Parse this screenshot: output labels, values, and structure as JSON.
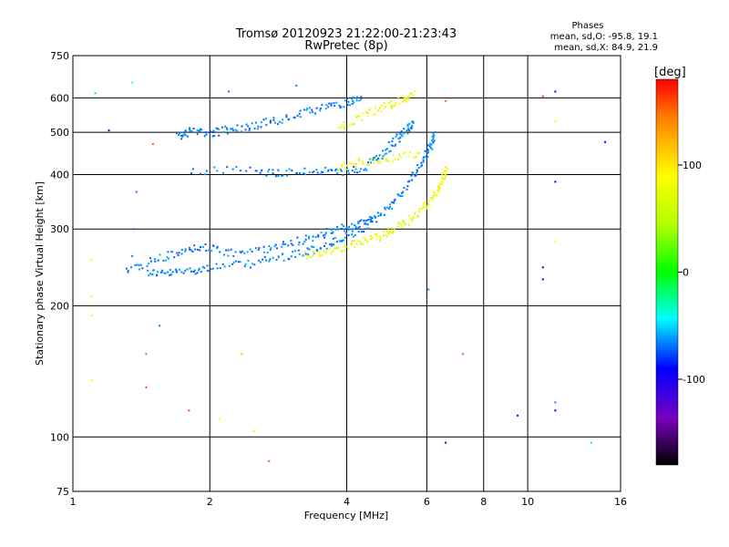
{
  "chart_data": {
    "type": "scatter",
    "title": "Tromsø 20120923 21:22:00-21:23:43",
    "subtitle": "RwPretec (8p)",
    "xlabel": "Frequency [MHz]",
    "ylabel": "Stationary phase Virtual Height [km]",
    "x_scale": "log",
    "y_scale": "log",
    "xlim": [
      1,
      16
    ],
    "ylim": [
      75,
      750
    ],
    "x_ticks": [
      1,
      2,
      4,
      6,
      8,
      10,
      16
    ],
    "x_gridlines": [
      2,
      4,
      6,
      8,
      10
    ],
    "y_ticks": [
      75,
      100,
      200,
      300,
      400,
      500,
      600,
      750
    ],
    "y_gridlines": [
      100,
      200,
      300,
      400,
      500,
      600
    ],
    "grid": true,
    "stats": {
      "heading": "Phases",
      "line1": "mean, sd,O: -95.8, 19.1",
      "line2": "mean, sd,X: 84.9, 21.9"
    },
    "colorbar": {
      "label": "[deg]",
      "range": [
        -180,
        180
      ],
      "ticks": [
        100,
        0,
        -100
      ]
    },
    "traces": [
      {
        "phase": -100,
        "points": [
          [
            1.45,
            240
          ],
          [
            1.6,
            238
          ],
          [
            1.8,
            242
          ],
          [
            2.0,
            246
          ],
          [
            2.4,
            250
          ],
          [
            2.8,
            258
          ],
          [
            3.2,
            266
          ],
          [
            3.6,
            276
          ],
          [
            4.0,
            290
          ],
          [
            4.4,
            305
          ],
          [
            4.8,
            330
          ],
          [
            5.2,
            360
          ],
          [
            5.6,
            400
          ],
          [
            5.9,
            440
          ],
          [
            6.1,
            470
          ],
          [
            6.2,
            500
          ]
        ]
      },
      {
        "phase": -100,
        "points": [
          [
            1.3,
            240
          ],
          [
            1.5,
            255
          ],
          [
            1.7,
            265
          ],
          [
            1.9,
            275
          ],
          [
            2.2,
            265
          ],
          [
            2.6,
            270
          ],
          [
            3.0,
            280
          ],
          [
            3.4,
            290
          ],
          [
            3.8,
            300
          ],
          [
            4.2,
            310
          ],
          [
            4.6,
            320
          ]
        ]
      },
      {
        "phase": 95,
        "points": [
          [
            3.2,
            262
          ],
          [
            3.6,
            268
          ],
          [
            4.0,
            275
          ],
          [
            4.4,
            283
          ],
          [
            4.8,
            292
          ],
          [
            5.2,
            305
          ],
          [
            5.6,
            322
          ],
          [
            6.0,
            345
          ],
          [
            6.3,
            370
          ],
          [
            6.5,
            395
          ],
          [
            6.6,
            420
          ]
        ]
      },
      {
        "phase": -100,
        "points": [
          [
            1.7,
            490
          ],
          [
            1.8,
            505
          ],
          [
            2.0,
            500
          ],
          [
            2.2,
            510
          ],
          [
            2.5,
            520
          ],
          [
            2.8,
            535
          ],
          [
            3.2,
            555
          ],
          [
            3.6,
            575
          ],
          [
            4.0,
            590
          ],
          [
            4.3,
            600
          ]
        ]
      },
      {
        "phase": -100,
        "points": [
          [
            1.8,
            410
          ],
          [
            2.5,
            410
          ],
          [
            2.9,
            405
          ],
          [
            3.4,
            410
          ],
          [
            3.9,
            405
          ],
          [
            4.4,
            420
          ],
          [
            4.8,
            450
          ],
          [
            5.1,
            480
          ],
          [
            5.4,
            510
          ],
          [
            5.6,
            530
          ]
        ]
      },
      {
        "phase": 95,
        "points": [
          [
            3.8,
            510
          ],
          [
            4.3,
            545
          ],
          [
            4.8,
            575
          ],
          [
            5.3,
            600
          ],
          [
            5.6,
            615
          ]
        ]
      },
      {
        "phase": 95,
        "points": [
          [
            3.8,
            415
          ],
          [
            4.3,
            430
          ],
          [
            5.0,
            440
          ],
          [
            5.8,
            450
          ]
        ]
      }
    ],
    "scattered_points": [
      {
        "x": 1.1,
        "y": 255,
        "phase": 95
      },
      {
        "x": 1.1,
        "y": 210,
        "phase": 95
      },
      {
        "x": 1.1,
        "y": 190,
        "phase": 95
      },
      {
        "x": 1.1,
        "y": 135,
        "phase": 95
      },
      {
        "x": 1.12,
        "y": 615,
        "phase": 0
      },
      {
        "x": 1.2,
        "y": 505,
        "phase": -150
      },
      {
        "x": 1.35,
        "y": 650,
        "phase": -60
      },
      {
        "x": 1.35,
        "y": 260,
        "phase": -100
      },
      {
        "x": 1.36,
        "y": 300,
        "phase": -100
      },
      {
        "x": 1.38,
        "y": 365,
        "phase": -100
      },
      {
        "x": 1.45,
        "y": 155,
        "phase": 150
      },
      {
        "x": 1.45,
        "y": 130,
        "phase": 160
      },
      {
        "x": 1.5,
        "y": 470,
        "phase": 150
      },
      {
        "x": 1.55,
        "y": 180,
        "phase": -100
      },
      {
        "x": 1.8,
        "y": 115,
        "phase": 160
      },
      {
        "x": 2.1,
        "y": 110,
        "phase": 95
      },
      {
        "x": 2.2,
        "y": 620,
        "phase": -100
      },
      {
        "x": 2.35,
        "y": 155,
        "phase": 120
      },
      {
        "x": 2.5,
        "y": 103,
        "phase": 95
      },
      {
        "x": 2.7,
        "y": 88,
        "phase": 150
      },
      {
        "x": 3.1,
        "y": 640,
        "phase": -100
      },
      {
        "x": 6.05,
        "y": 218,
        "phase": -100
      },
      {
        "x": 6.6,
        "y": 97,
        "phase": -140
      },
      {
        "x": 6.6,
        "y": 590,
        "phase": 150
      },
      {
        "x": 7.2,
        "y": 155,
        "phase": 150
      },
      {
        "x": 9.5,
        "y": 112,
        "phase": -140
      },
      {
        "x": 10.8,
        "y": 245,
        "phase": -150
      },
      {
        "x": 10.8,
        "y": 230,
        "phase": -150
      },
      {
        "x": 10.8,
        "y": 605,
        "phase": 160
      },
      {
        "x": 11.5,
        "y": 120,
        "phase": -100
      },
      {
        "x": 11.5,
        "y": 115,
        "phase": -140
      },
      {
        "x": 11.5,
        "y": 280,
        "phase": 95
      },
      {
        "x": 11.5,
        "y": 385,
        "phase": -140
      },
      {
        "x": 11.5,
        "y": 530,
        "phase": 95
      },
      {
        "x": 11.5,
        "y": 620,
        "phase": -140
      },
      {
        "x": 13.8,
        "y": 97,
        "phase": 0
      },
      {
        "x": 14.8,
        "y": 475,
        "phase": -140
      }
    ]
  }
}
